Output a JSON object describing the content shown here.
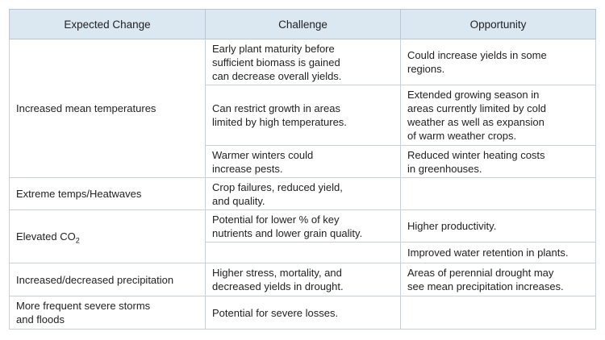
{
  "headers": [
    "Expected Change",
    "Challenge",
    "Opportunity"
  ],
  "rows": {
    "temp": {
      "change": "Increased mean temperatures",
      "c1": "Early plant maturity before\nsufficient biomass is gained\ncan decrease overall yields.",
      "o1": "Could increase yields in some\nregions.",
      "c2": "Can restrict growth in areas\nlimited by high temperatures.",
      "o2": "Extended growing season in\nareas currently limited by cold\nweather as well as expansion\nof warm weather crops.",
      "c3": "Warmer winters could\nincrease pests.",
      "o3": "Reduced winter heating costs\nin greenhouses."
    },
    "heat": {
      "change": "Extreme temps/Heatwaves",
      "c1": "Crop failures, reduced yield,\nand quality.",
      "o1": ""
    },
    "co2": {
      "change": "Elevated CO",
      "change_sub": "2",
      "c1": "Potential for lower % of key\nnutrients and lower grain quality.",
      "o1": "Higher productivity.",
      "c2": "",
      "o2": "Improved water retention in plants."
    },
    "precip": {
      "change": "Increased/decreased precipitation",
      "c1": "Higher stress, mortality, and\ndecreased yields in drought.",
      "o1": "Areas of perennial drought may\nsee mean precipitation increases."
    },
    "storms": {
      "change": "More frequent severe storms\nand floods",
      "c1": "Potential for severe losses.",
      "o1": ""
    }
  }
}
